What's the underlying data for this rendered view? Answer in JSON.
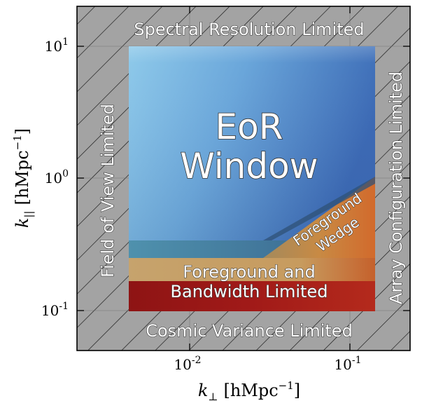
{
  "axes": {
    "x_label_var": "k",
    "x_label_sub": "⊥",
    "x_label_unit": "[hMpc",
    "x_label_unit_exp": "−1",
    "x_label_close": "]",
    "y_label_var": "k",
    "y_label_sub": "||",
    "y_label_unit": "[hMpc",
    "y_label_unit_exp": "−1",
    "y_label_close": "]",
    "x_ticks": [
      {
        "base": "10",
        "exp": "-2",
        "value": 0.01
      },
      {
        "base": "10",
        "exp": "-1",
        "value": 0.1
      }
    ],
    "y_ticks": [
      {
        "base": "10",
        "exp": "1",
        "value": 10
      },
      {
        "base": "10",
        "exp": "0",
        "value": 1
      },
      {
        "base": "10",
        "exp": "-1",
        "value": 0.1
      }
    ],
    "x_scale": "log",
    "y_scale": "log",
    "x_range": [
      0.0022,
      0.25
    ],
    "y_range": [
      0.05,
      20
    ],
    "grid": true
  },
  "regions": {
    "top": "Spectral Resolution Limited",
    "bottom": "Cosmic Variance Limited",
    "left": "Field of View Limited",
    "right": "Array Configuration Limited",
    "window_line1": "EoR",
    "window_line2": "Window",
    "foreground_line1": "Foreground and",
    "foreground_line2": "Bandwidth Limited",
    "wedge_line1": "Foreground",
    "wedge_line2": "Wedge"
  },
  "colors": {
    "hatch_bg": "#a3a3a3",
    "window_light": "#8fcaea",
    "window_dark": "#3a68b4",
    "band_teal": "#4d8aa6",
    "band_tan": "#c9a56a",
    "band_red": "#921616",
    "wedge_orange": "#d08a3a"
  }
}
